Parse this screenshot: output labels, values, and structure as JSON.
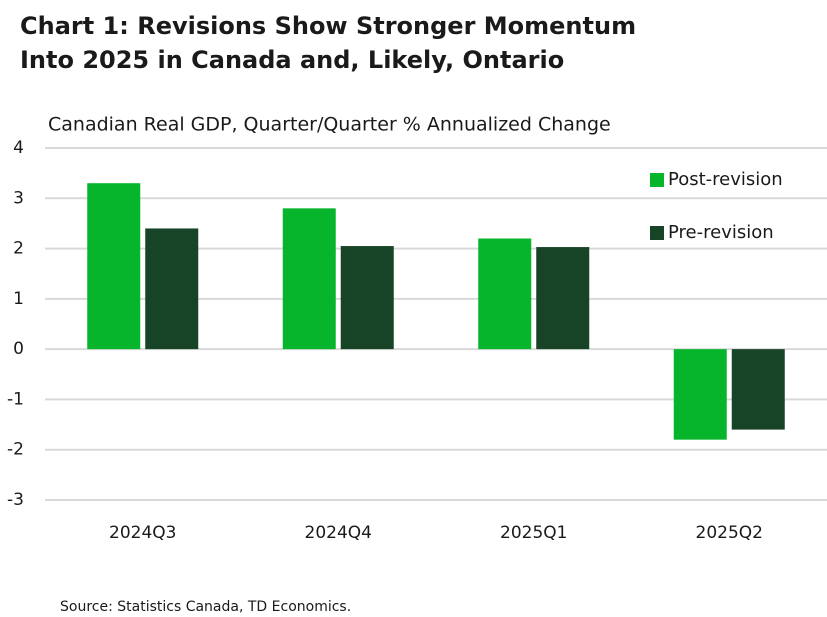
{
  "chart_data": {
    "type": "bar",
    "title": [
      "Chart 1: Revisions Show Stronger Momentum",
      "Into 2025 in Canada and, Likely, Ontario"
    ],
    "subtitle": "Canadian Real GDP, Quarter/Quarter % Annualized Change",
    "source": "Source: Statistics Canada, TD Economics.",
    "categories": [
      "2024Q3",
      "2024Q4",
      "2025Q1",
      "2025Q2"
    ],
    "series": [
      {
        "name": "Post-revision",
        "color": "#06b52c",
        "values": [
          3.3,
          2.8,
          2.2,
          -1.8
        ]
      },
      {
        "name": "Pre-revision",
        "color": "#174327",
        "values": [
          2.4,
          2.05,
          2.03,
          -1.6
        ]
      }
    ],
    "ylim": [
      -3,
      4
    ],
    "yticks": [
      -3,
      -2,
      -1,
      0,
      1,
      2,
      3,
      4
    ],
    "grid": true,
    "legend": "top-right"
  }
}
